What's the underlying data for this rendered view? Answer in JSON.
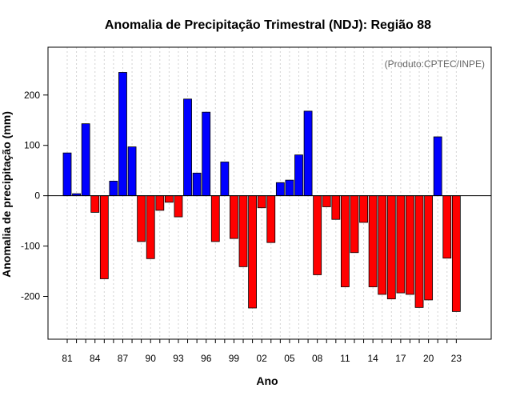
{
  "chart_data": {
    "type": "bar",
    "title": "Anomalia de Precipitação Trimestral (NDJ): Região 88",
    "credit": "(Produto:CPTEC/INPE)",
    "xlabel": "Ano",
    "ylabel": "Anomalia de precipitação (mm)",
    "ylim": [
      -285,
      295
    ],
    "y_ticks": [
      -200,
      -100,
      0,
      100,
      200
    ],
    "x_tick_labels": [
      "81",
      "84",
      "87",
      "90",
      "93",
      "96",
      "99",
      "02",
      "05",
      "08",
      "11",
      "14",
      "17",
      "20",
      "23"
    ],
    "categories": [
      "81",
      "82",
      "83",
      "84",
      "85",
      "86",
      "87",
      "88",
      "89",
      "90",
      "91",
      "92",
      "93",
      "94",
      "95",
      "96",
      "97",
      "98",
      "99",
      "00",
      "01",
      "02",
      "03",
      "04",
      "05",
      "06",
      "07",
      "08",
      "09",
      "10",
      "11",
      "12",
      "13",
      "14",
      "15",
      "16",
      "17",
      "18",
      "19",
      "20",
      "21",
      "22",
      "23"
    ],
    "values": [
      85,
      4,
      143,
      -33,
      -165,
      29,
      245,
      97,
      -91,
      -125,
      -29,
      -13,
      -42,
      192,
      45,
      166,
      -91,
      67,
      -85,
      -141,
      -223,
      -24,
      -93,
      26,
      31,
      81,
      168,
      -157,
      -22,
      -47,
      -181,
      -113,
      -53,
      -181,
      -196,
      -205,
      -193,
      -196,
      -222,
      -207,
      117,
      -124,
      -230
    ],
    "colors": {
      "positive": "#0000ff",
      "negative": "#ff0000",
      "grid": "#d3d3d3"
    }
  }
}
